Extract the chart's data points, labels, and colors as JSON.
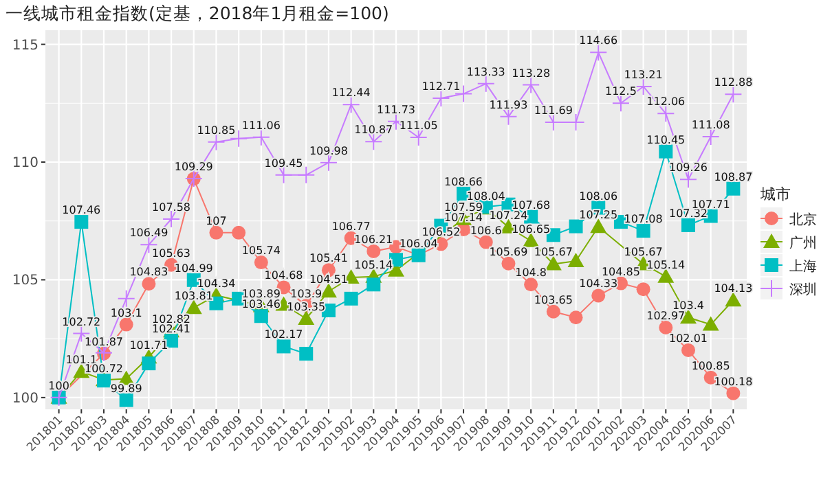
{
  "chart_data": {
    "type": "line",
    "title": "一线城市租金指数(定基，2018年1月租金=100)",
    "legend_title": "城市",
    "legend": "right",
    "grid": true,
    "line_style": "solid",
    "categories": [
      "201801",
      "201802",
      "201803",
      "201804",
      "201805",
      "201806",
      "201807",
      "201808",
      "201809",
      "201810",
      "201811",
      "201812",
      "201901",
      "201902",
      "201903",
      "201904",
      "201905",
      "201906",
      "201907",
      "201908",
      "201909",
      "201910",
      "201911",
      "201912",
      "202001",
      "202002",
      "202003",
      "202004",
      "202005",
      "202006",
      "202007"
    ],
    "ylim": [
      99.5,
      115.6
    ],
    "yticks": [
      100,
      105,
      110,
      115
    ],
    "series": [
      {
        "name": "北京",
        "color": "#f8766d",
        "marker": "circle",
        "values": [
          100,
          null,
          101.87,
          103.1,
          104.83,
          105.63,
          109.29,
          107,
          107.0,
          105.74,
          104.68,
          103.9,
          105.41,
          106.77,
          106.21,
          106.4,
          106.05,
          106.52,
          107.14,
          106.6,
          105.69,
          104.8,
          103.65,
          103.4,
          104.33,
          104.85,
          104.6,
          102.97,
          102.01,
          100.85,
          100.18
        ],
        "value_labels": [
          "100",
          null,
          "101.87",
          "103.1",
          "104.83",
          "105.63",
          "109.29",
          "107",
          null,
          "105.74",
          "104.68",
          "103.9",
          "105.41",
          "106.77",
          "106.21",
          null,
          null,
          "106.52",
          "107.14",
          "106.6",
          "105.69",
          "104.8",
          "103.65",
          null,
          "104.33",
          "104.85",
          null,
          "102.97",
          "102.01",
          "100.85",
          "100.18"
        ]
      },
      {
        "name": "广州",
        "color": "#7cae00",
        "marker": "triangle",
        "values": [
          100,
          101.1,
          100.75,
          100.8,
          101.71,
          102.82,
          103.81,
          104.34,
          null,
          103.89,
          103.95,
          103.35,
          104.51,
          105.1,
          105.14,
          105.4,
          null,
          null,
          107.59,
          108.04,
          107.24,
          106.65,
          105.67,
          105.8,
          107.25,
          null,
          105.67,
          105.14,
          103.4,
          103.1,
          104.13
        ],
        "value_labels": [
          null,
          "101.1",
          null,
          null,
          "101.71",
          "102.82",
          "103.81",
          "104.34",
          null,
          "103.89",
          null,
          "103.35",
          "104.51",
          null,
          "105.14",
          null,
          null,
          null,
          "107.59",
          "108.04",
          "107.24",
          "106.65",
          "105.67",
          null,
          "107.25",
          null,
          "105.67",
          "105.14",
          "103.4",
          null,
          "104.13"
        ]
      },
      {
        "name": "上海",
        "color": "#00bfc4",
        "marker": "square",
        "values": [
          100,
          107.46,
          100.72,
          99.89,
          101.45,
          102.41,
          104.99,
          104.0,
          104.2,
          103.46,
          102.17,
          101.86,
          103.7,
          104.2,
          104.8,
          105.85,
          106.04,
          107.3,
          108.66,
          108.1,
          108.2,
          107.68,
          106.9,
          107.27,
          108.06,
          107.46,
          107.08,
          110.45,
          107.32,
          107.71,
          108.87
        ],
        "value_labels": [
          null,
          "107.46",
          "100.72",
          "99.89",
          null,
          "102.41",
          "104.99",
          null,
          null,
          "103.46",
          "102.17",
          null,
          null,
          null,
          null,
          null,
          "106.04",
          null,
          "108.66",
          null,
          null,
          "107.68",
          null,
          null,
          "108.06",
          null,
          "107.08",
          "110.45",
          "107.32",
          "107.71",
          "108.87"
        ]
      },
      {
        "name": "深圳",
        "color": "#c77cff",
        "marker": "cross",
        "values": [
          100,
          102.72,
          101.9,
          104.2,
          106.49,
          107.58,
          109.3,
          110.85,
          111.0,
          111.06,
          109.45,
          109.45,
          109.98,
          112.44,
          110.87,
          111.73,
          111.05,
          112.71,
          112.9,
          113.33,
          111.93,
          113.28,
          111.69,
          111.69,
          114.66,
          112.5,
          113.21,
          112.06,
          109.26,
          111.08,
          112.88
        ],
        "value_labels": [
          null,
          "102.72",
          null,
          null,
          "106.49",
          "107.58",
          null,
          "110.85",
          null,
          "111.06",
          "109.45",
          null,
          "109.98",
          "112.44",
          "110.87",
          "111.73",
          "111.05",
          "112.71",
          null,
          "113.33",
          "111.93",
          "113.28",
          "111.69",
          null,
          "114.66",
          "112.5",
          "113.21",
          "112.06",
          "109.26",
          "111.08",
          "112.88"
        ]
      }
    ]
  }
}
